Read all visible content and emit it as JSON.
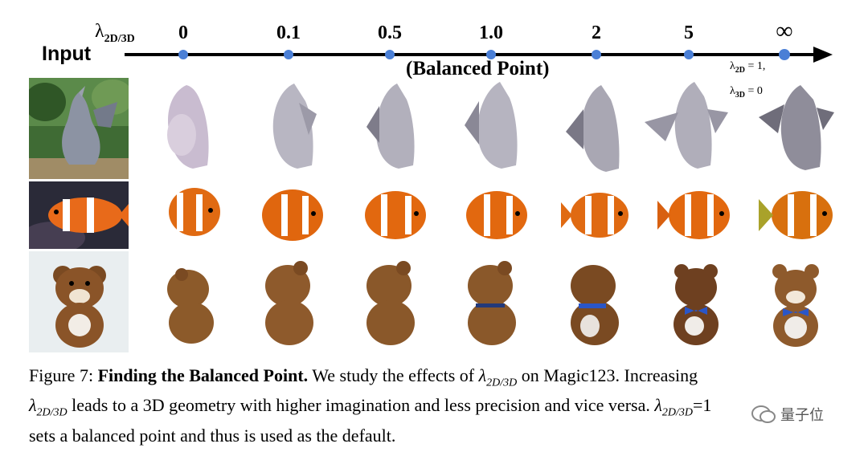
{
  "axis": {
    "lambda_symbol": "λ",
    "lambda_subscript": "2D/3D",
    "input_label": "Input",
    "balanced_label": "(Balanced Point)",
    "ticks": [
      "0",
      "0.1",
      "0.5",
      "1.0",
      "2",
      "5",
      "∞"
    ],
    "extreme_note": {
      "line1_lambda": "λ",
      "line1_sub": "2D",
      "line1_rest": " = 1,",
      "line2_lambda": "λ",
      "line2_sub": "3D",
      "line2_rest": " = 0"
    },
    "accent_color": "#4a7fd6"
  },
  "rows": [
    {
      "name": "dragon",
      "input_desc": "dragon statue photo"
    },
    {
      "name": "clownfish",
      "input_desc": "clownfish photo"
    },
    {
      "name": "teddy-bear",
      "input_desc": "teddy bear photo"
    }
  ],
  "caption": {
    "figure_label": "Figure 7:",
    "title": "Finding the Balanced Point.",
    "text1": "We study the effects of",
    "lambda": "λ",
    "lambda_sub": "2D/3D",
    "text2": "on Magic123. Increasing",
    "text3": "leads to a 3D geometry with higher imagination and less precision and vice versa.",
    "text4": "=1",
    "text5": "sets a balanced point and thus is used as the default."
  },
  "watermark": {
    "text": "量子位"
  }
}
